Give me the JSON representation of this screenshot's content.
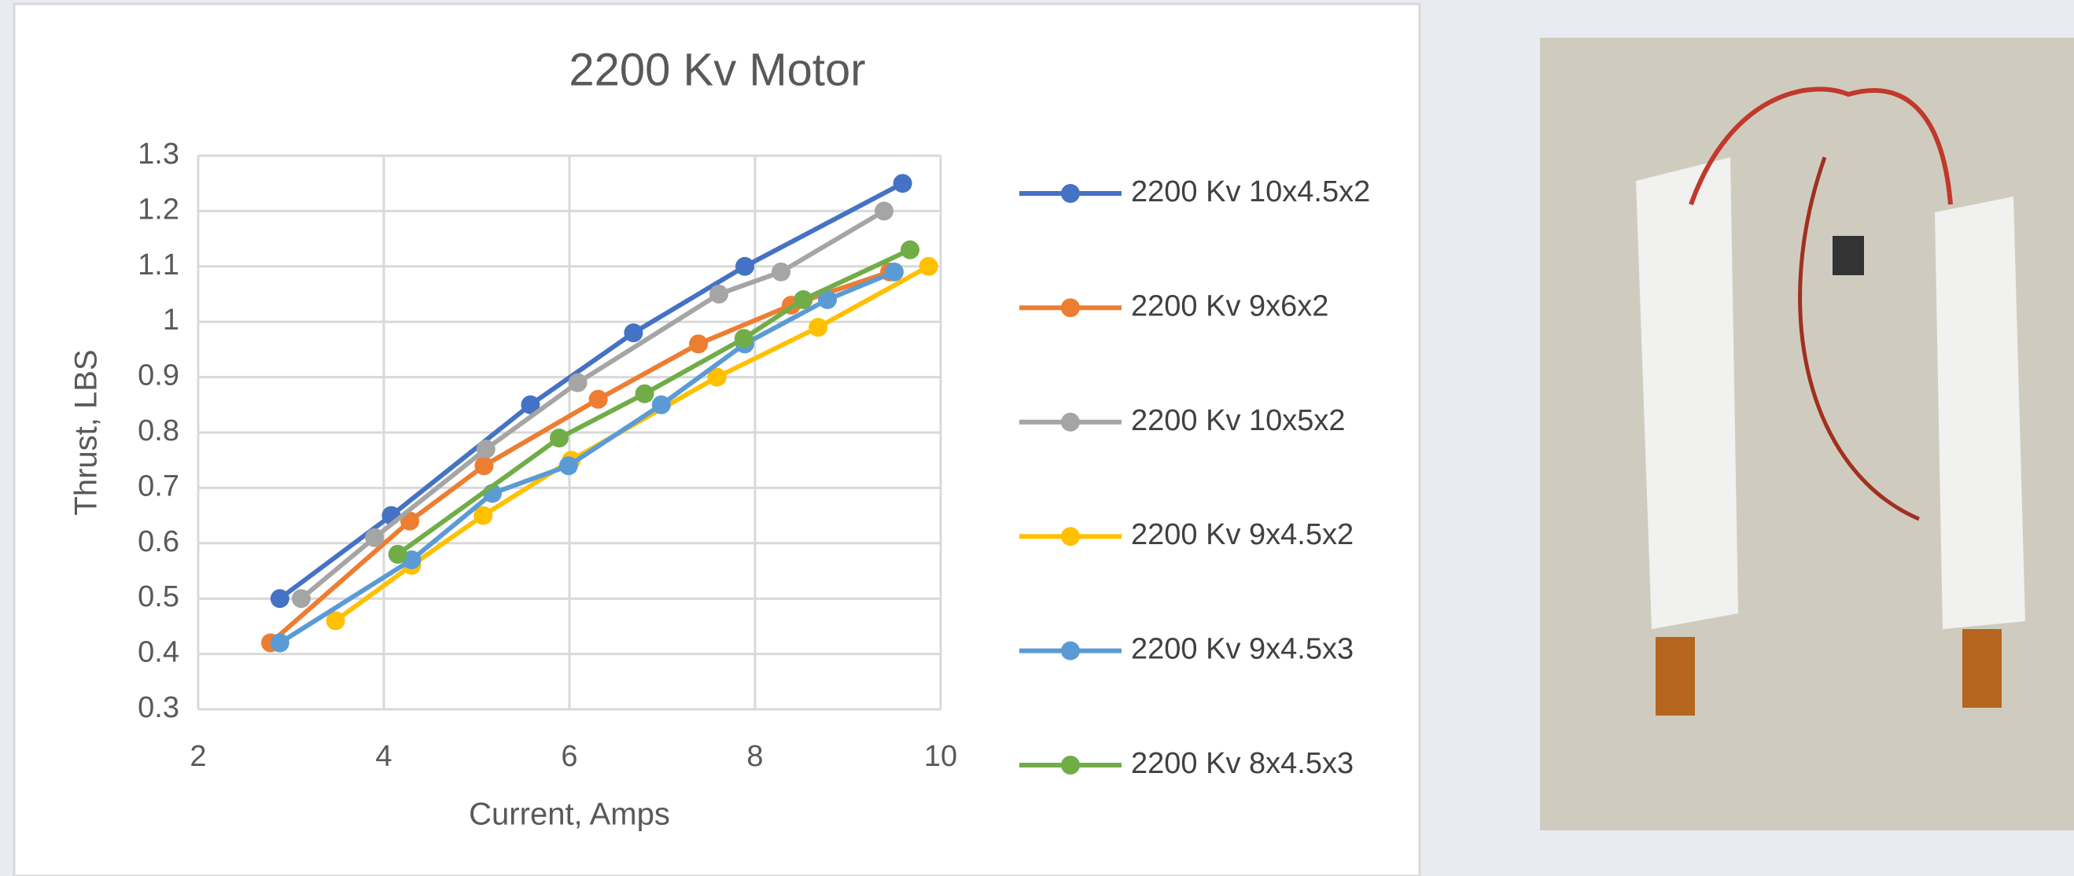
{
  "chart_data": {
    "type": "line",
    "title": "2200 Kv Motor",
    "x_label": "Current, Amps",
    "y_label": "Thrust, LBS",
    "xlim": [
      2,
      10
    ],
    "xticks": [
      2,
      4,
      6,
      8,
      10
    ],
    "ylim": [
      0.3,
      1.3
    ],
    "yticks": [
      0.3,
      0.4,
      0.5,
      0.6,
      0.7,
      0.8,
      0.9,
      1,
      1.1,
      1.2,
      1.3
    ],
    "grid": true,
    "legend": "right",
    "series": [
      {
        "name": "2200 Kv 10x4.5x2",
        "color": "#4472c4",
        "x": [
          2.88,
          4.08,
          5.58,
          6.69,
          7.89,
          9.59
        ],
        "values": [
          0.5,
          0.65,
          0.85,
          0.98,
          1.1,
          1.25
        ]
      },
      {
        "name": "2200 Kv 9x6x2",
        "color": "#ed7d31",
        "x": [
          2.78,
          4.28,
          5.08,
          6.31,
          7.39,
          8.39,
          9.45
        ],
        "values": [
          0.42,
          0.64,
          0.74,
          0.86,
          0.96,
          1.03,
          1.09
        ]
      },
      {
        "name": "2200 Kv 10x5x2",
        "color": "#a5a5a5",
        "x": [
          3.11,
          3.9,
          5.1,
          6.09,
          7.61,
          8.28,
          9.39
        ],
        "values": [
          0.5,
          0.61,
          0.77,
          0.89,
          1.05,
          1.09,
          1.2
        ]
      },
      {
        "name": "2200 Kv 9x4.5x2",
        "color": "#ffc000",
        "x": [
          3.48,
          4.3,
          5.07,
          6.02,
          7.59,
          8.68,
          9.87
        ],
        "values": [
          0.46,
          0.56,
          0.65,
          0.75,
          0.9,
          0.99,
          1.1
        ]
      },
      {
        "name": "2200 Kv 9x4.5x3",
        "color": "#5b9bd5",
        "x": [
          2.88,
          4.3,
          5.17,
          5.99,
          6.99,
          7.89,
          8.78,
          9.5
        ],
        "values": [
          0.42,
          0.57,
          0.69,
          0.74,
          0.85,
          0.96,
          1.04,
          1.09
        ]
      },
      {
        "name": "2200 Kv 8x4.5x3",
        "color": "#70ad47",
        "x": [
          4.15,
          5.89,
          6.81,
          7.88,
          8.52,
          9.67
        ],
        "values": [
          0.58,
          0.79,
          0.87,
          0.97,
          1.04,
          1.13
        ]
      }
    ]
  }
}
